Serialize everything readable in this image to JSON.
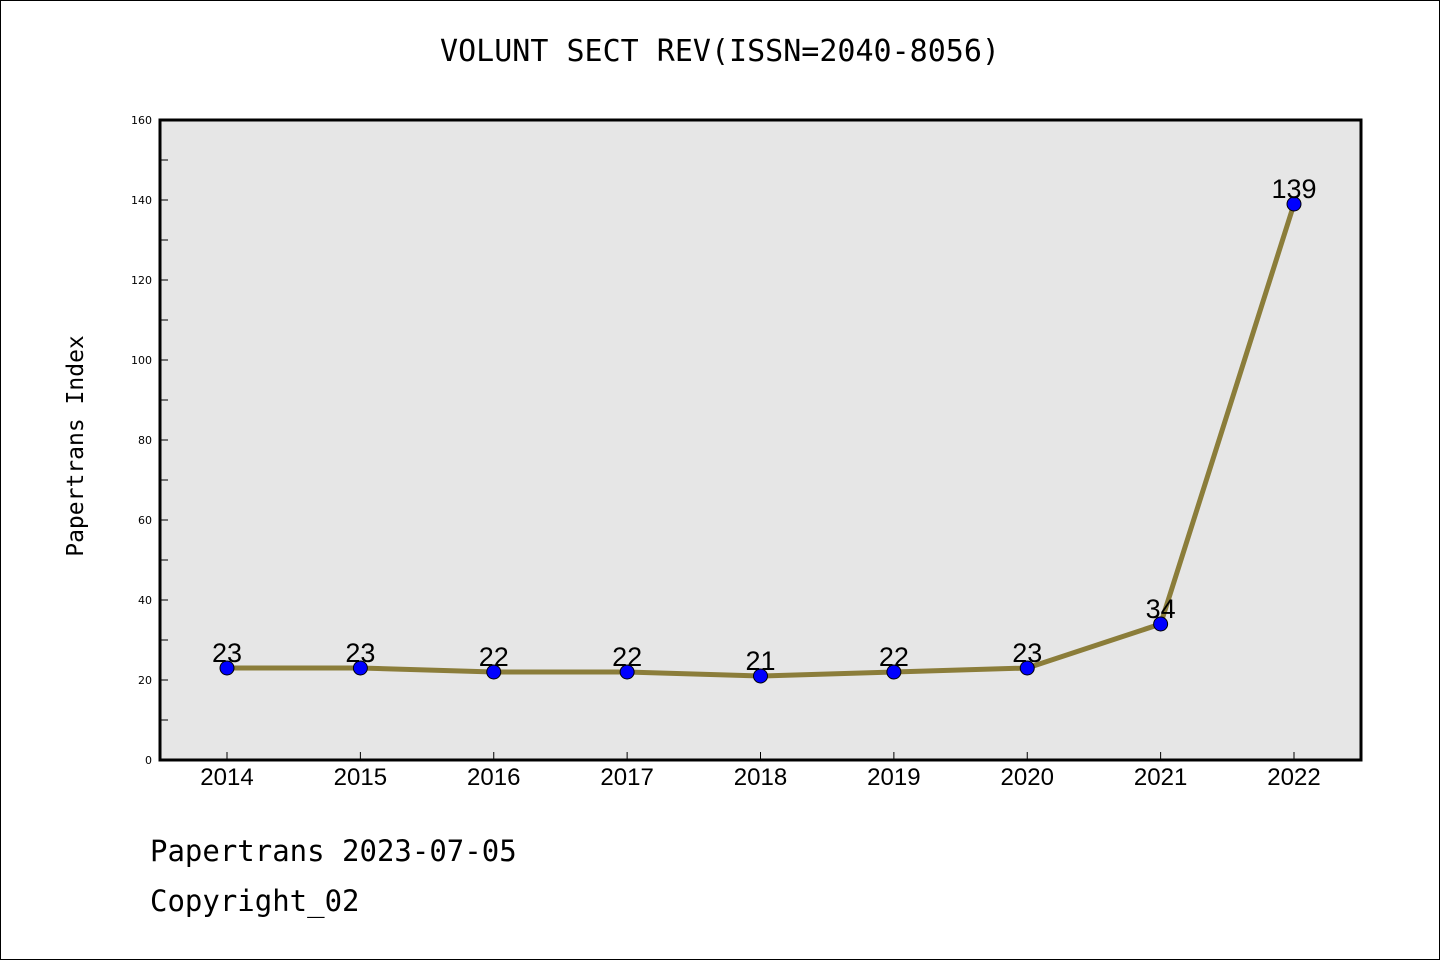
{
  "chart_data": {
    "type": "line",
    "title": "VOLUNT SECT REV(ISSN=2040-8056)",
    "xlabel": "",
    "ylabel": "Papertrans Index",
    "x": [
      "2014",
      "2015",
      "2016",
      "2017",
      "2018",
      "2019",
      "2020",
      "2021",
      "2022"
    ],
    "series": [
      {
        "values": [
          23,
          23,
          22,
          22,
          21,
          22,
          23,
          34,
          139
        ]
      }
    ],
    "data_labels": [
      "23",
      "23",
      "22",
      "22",
      "21",
      "22",
      "23",
      "34",
      "139"
    ],
    "ylim": [
      0,
      160
    ],
    "yticks": [
      0,
      20,
      40,
      60,
      80,
      100,
      120,
      140,
      160
    ],
    "grid": false,
    "colors": {
      "line": "#8b7d3a",
      "marker": "#0000ff",
      "plot_bg": "#e6e6e6"
    }
  },
  "footer": {
    "line1": "Papertrans 2023-07-05",
    "line2": "Copyright_02"
  }
}
